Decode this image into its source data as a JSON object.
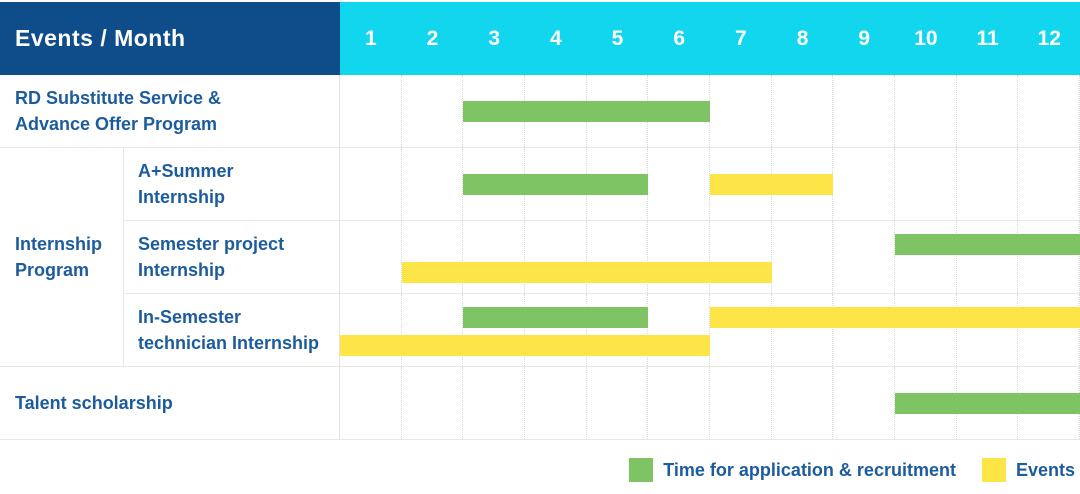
{
  "header": {
    "title": "Events / Month"
  },
  "colors": {
    "header_bg": "#0f4d8a",
    "month_header_bg": "#12d6ee",
    "application_green": "#7ec464",
    "event_yellow": "#fde447",
    "label_blue": "#1c5c9e",
    "grid_line": "#e8e8e8"
  },
  "chart_data": {
    "type": "gantt",
    "x_label": "Month",
    "x_range": [
      1,
      12
    ],
    "months": [
      "1",
      "2",
      "3",
      "4",
      "5",
      "6",
      "7",
      "8",
      "9",
      "10",
      "11",
      "12"
    ],
    "legend_position": "bottom-right",
    "legend": [
      {
        "key": "application",
        "label": "Time for application & recruitment",
        "color": "#7ec464"
      },
      {
        "key": "event",
        "label": "Events",
        "color": "#fde447"
      }
    ],
    "group": {
      "label_lines": [
        "Internship",
        "Program"
      ],
      "covers_rows": [
        "a-plus-summer-internship",
        "semester-project-internship",
        "in-semester-technician-internship"
      ]
    },
    "rows": [
      {
        "id": "rd-substitute-service",
        "label_lines": [
          "RD Substitute Service &",
          "Advance Offer Program"
        ],
        "in_group": false,
        "bars": [
          {
            "type": "application",
            "start_month": 3,
            "end_month": 6,
            "lane": "center"
          }
        ]
      },
      {
        "id": "a-plus-summer-internship",
        "label_lines": [
          "A+Summer",
          "Internship"
        ],
        "in_group": true,
        "bars": [
          {
            "type": "application",
            "start_month": 3,
            "end_month": 5,
            "lane": "center"
          },
          {
            "type": "event",
            "start_month": 7,
            "end_month": 8,
            "lane": "center"
          }
        ]
      },
      {
        "id": "semester-project-internship",
        "label_lines": [
          "Semester project",
          "Internship"
        ],
        "in_group": true,
        "bars": [
          {
            "type": "application",
            "start_month": 10,
            "end_month": 12,
            "lane": "top"
          },
          {
            "type": "event",
            "start_month": 2,
            "end_month": 7,
            "lane": "bottom"
          }
        ]
      },
      {
        "id": "in-semester-technician-internship",
        "label_lines": [
          "In-Semester",
          "technician Internship"
        ],
        "in_group": true,
        "bars": [
          {
            "type": "application",
            "start_month": 3,
            "end_month": 5,
            "lane": "top"
          },
          {
            "type": "event",
            "start_month": 7,
            "end_month": 12,
            "lane": "top"
          },
          {
            "type": "event",
            "start_month": 1,
            "end_month": 6,
            "lane": "bottom"
          }
        ]
      },
      {
        "id": "talent-scholarship",
        "label_lines": [
          "Talent scholarship"
        ],
        "in_group": false,
        "bars": [
          {
            "type": "application",
            "start_month": 10,
            "end_month": 12,
            "lane": "center"
          }
        ]
      }
    ]
  }
}
